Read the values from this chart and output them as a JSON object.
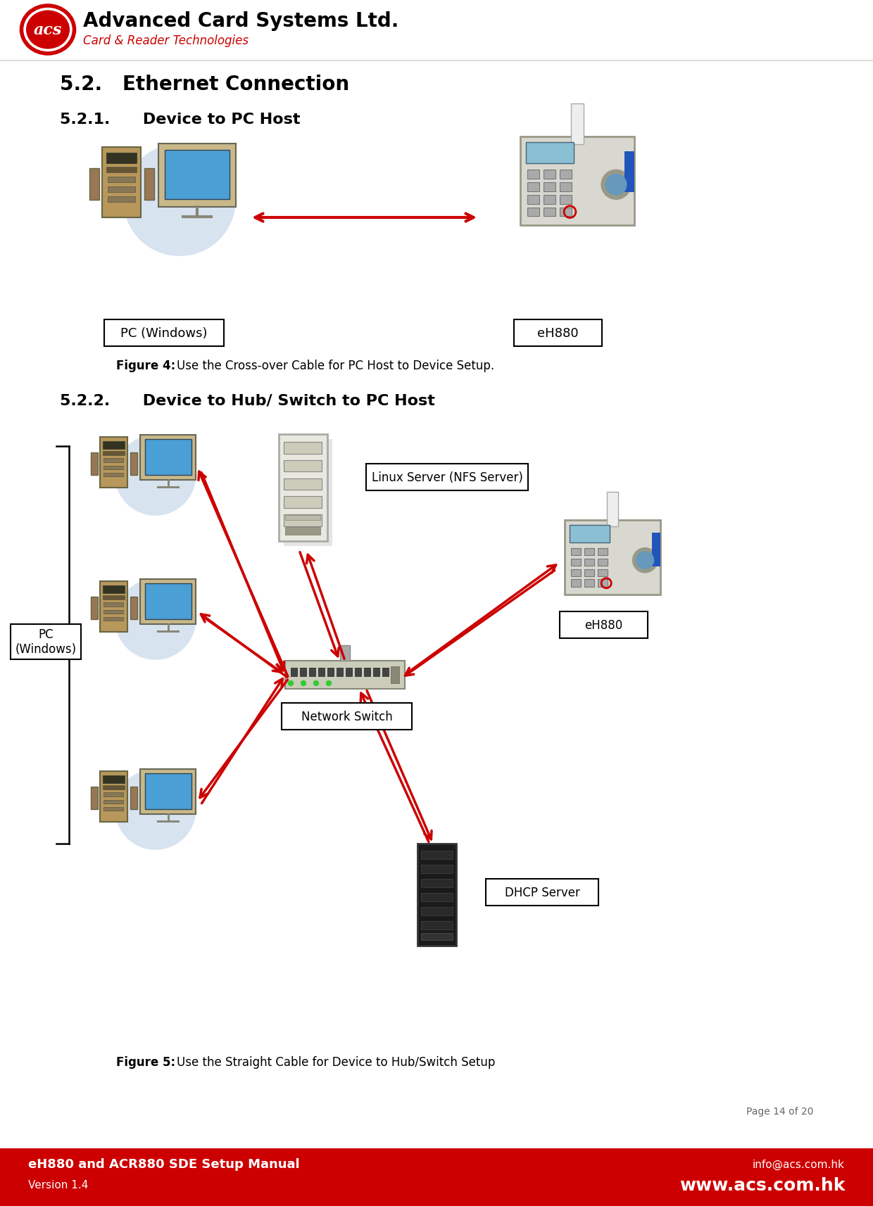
{
  "bg_color": "#ffffff",
  "header_company_name": "Advanced Card Systems Ltd.",
  "header_tagline": "Card & Reader Technologies",
  "header_tagline_color": "#cc0000",
  "section_title": "5.2.   Ethernet Connection",
  "sub_section1_label": "5.2.1.",
  "sub_section1_title": "Device to PC Host",
  "sub_section2_label": "5.2.2.",
  "sub_section2_title": "Device to Hub/ Switch to PC Host",
  "figure4_caption_bold": "Figure 4:",
  "figure4_caption": "    Use the Cross-over Cable for PC Host to Device Setup.",
  "figure5_caption_bold": "Figure 5:",
  "figure5_caption": "    Use the Straight Cable for Device to Hub/Switch Setup",
  "label_pc_windows": "PC (Windows)",
  "label_eh880": "eH880",
  "label_network_switch": "Network Switch",
  "label_linux_server": "Linux Server (NFS Server)",
  "label_dhcp_server": "DHCP Server",
  "label_pc_windows2": "PC\n(Windows)",
  "footer_bg_color": "#cc0000",
  "footer_left_bold": "eH880 and ACR880 SDE Setup Manual",
  "footer_left_small": "Version 1.4",
  "footer_right_large": "www.acs.com.hk",
  "footer_right_small": "info@acs.com.hk",
  "page_ref": "Page 14 of 20",
  "arrow_color": "#cc0000",
  "logo_red": "#cc0000"
}
